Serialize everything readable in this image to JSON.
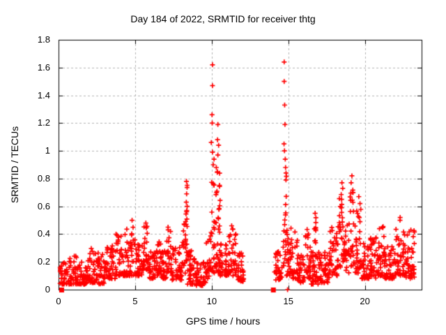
{
  "figure": {
    "title": "Day 184 of 2022, SRMTID for receiver thtg",
    "xlabel": "GPS time / hours",
    "ylabel": "SRMTID / TECUs"
  },
  "chart_data": {
    "type": "scatter",
    "title": "Day 184 of 2022, SRMTID for receiver thtg",
    "xlabel": "GPS time / hours",
    "ylabel": "SRMTID / TECUs",
    "marker": "plus",
    "marker_color": "#ff0000",
    "grid": true,
    "grid_color": "#b2b2b2",
    "border_color": "#000000",
    "background": "#ffffff",
    "xlim": [
      0,
      23.7
    ],
    "ylim": [
      0,
      1.8
    ],
    "xticks": [
      0,
      5,
      10,
      15,
      20
    ],
    "yticks": [
      0,
      0.2,
      0.4,
      0.6,
      0.8,
      1.0,
      1.2,
      1.4,
      1.6,
      1.8
    ],
    "xtick_labels": [
      "0",
      "5",
      "10",
      "15",
      "20"
    ],
    "ytick_labels": [
      "0",
      "0.2",
      "0.4",
      "0.6",
      "0.8",
      "1",
      "1.2",
      "1.4",
      "1.6",
      "1.8"
    ],
    "x_data_ranges": [
      [
        0.1,
        12.1
      ],
      [
        14.1,
        23.3
      ]
    ],
    "data_gap_hours": [
      12.1,
      14.1
    ],
    "seed": 1184,
    "zero_square_markers": [
      [
        0.18,
        0
      ],
      [
        14.0,
        0
      ]
    ],
    "zero_plus_markers": [
      [
        14.95,
        0
      ]
    ],
    "extreme_points": [
      [
        4.8,
        0.5
      ],
      [
        5.7,
        0.48
      ],
      [
        7.15,
        0.45
      ],
      [
        8.35,
        0.78
      ],
      [
        8.36,
        0.69
      ],
      [
        8.34,
        0.63
      ],
      [
        8.37,
        0.57
      ],
      [
        9.97,
        1.06
      ],
      [
        10.02,
        1.26
      ],
      [
        10.03,
        1.2
      ],
      [
        10.05,
        1.62
      ],
      [
        10.05,
        1.47
      ],
      [
        10.05,
        0.99
      ],
      [
        10.1,
        0.9
      ],
      [
        10.15,
        0.94
      ],
      [
        10.3,
        0.88
      ],
      [
        10.38,
        1.08
      ],
      [
        10.4,
        1.19
      ],
      [
        10.4,
        0.97
      ],
      [
        10.45,
        1.04
      ],
      [
        11.3,
        0.46
      ],
      [
        14.73,
        1.64
      ],
      [
        14.73,
        1.5
      ],
      [
        14.76,
        1.33
      ],
      [
        14.78,
        1.19
      ],
      [
        14.72,
        1.05
      ],
      [
        14.75,
        1.0
      ],
      [
        14.8,
        0.94
      ],
      [
        14.82,
        0.88
      ],
      [
        14.85,
        0.84
      ],
      [
        16.75,
        0.55
      ],
      [
        18.5,
        0.77
      ],
      [
        18.55,
        0.73
      ],
      [
        18.48,
        0.65
      ],
      [
        19.15,
        0.82
      ],
      [
        19.1,
        0.77
      ],
      [
        19.6,
        0.67
      ],
      [
        19.68,
        0.62
      ],
      [
        22.3,
        0.52
      ],
      [
        23.0,
        0.43
      ]
    ],
    "clusters": [
      [
        0.1,
        0.7,
        40,
        0.04,
        0.2,
        2.0
      ],
      [
        0.7,
        1.3,
        42,
        0.04,
        0.25,
        2.0
      ],
      [
        1.3,
        1.9,
        40,
        0.04,
        0.22,
        2.0
      ],
      [
        1.9,
        2.4,
        35,
        0.05,
        0.3,
        2.0
      ],
      [
        2.4,
        3.0,
        40,
        0.04,
        0.28,
        2.0
      ],
      [
        3.0,
        3.7,
        46,
        0.08,
        0.33,
        2.0
      ],
      [
        3.7,
        4.4,
        46,
        0.1,
        0.42,
        1.8
      ],
      [
        4.4,
        5.0,
        40,
        0.1,
        0.48,
        2.0
      ],
      [
        5.0,
        5.5,
        34,
        0.1,
        0.33,
        2.0
      ],
      [
        5.5,
        5.9,
        30,
        0.14,
        0.47,
        1.4
      ],
      [
        5.9,
        6.3,
        30,
        0.08,
        0.28,
        2.0
      ],
      [
        6.3,
        6.7,
        30,
        0.1,
        0.36,
        1.8
      ],
      [
        6.7,
        7.05,
        25,
        0.08,
        0.3,
        2.0
      ],
      [
        7.05,
        7.4,
        28,
        0.12,
        0.44,
        1.5
      ],
      [
        7.4,
        8.1,
        46,
        0.07,
        0.33,
        2.0
      ],
      [
        8.1,
        8.32,
        16,
        0.1,
        0.5,
        1.5
      ],
      [
        8.32,
        8.42,
        14,
        0.18,
        0.76,
        1.1
      ],
      [
        8.42,
        9.0,
        45,
        0.04,
        0.28,
        2.2
      ],
      [
        9.0,
        9.6,
        40,
        0.03,
        0.2,
        2.0
      ],
      [
        9.6,
        9.95,
        26,
        0.08,
        0.4,
        1.6
      ],
      [
        9.95,
        10.55,
        60,
        0.12,
        0.85,
        1.7
      ],
      [
        10.55,
        11.0,
        35,
        0.1,
        0.35,
        2.0
      ],
      [
        11.0,
        11.6,
        40,
        0.1,
        0.45,
        1.8
      ],
      [
        11.6,
        12.1,
        36,
        0.06,
        0.28,
        2.0
      ],
      [
        14.1,
        14.6,
        36,
        0.07,
        0.3,
        2.0
      ],
      [
        14.66,
        14.88,
        20,
        0.15,
        0.85,
        1.2
      ],
      [
        14.88,
        15.1,
        18,
        0.1,
        0.45,
        1.6
      ],
      [
        15.1,
        15.6,
        36,
        0.08,
        0.5,
        1.8
      ],
      [
        15.6,
        16.05,
        30,
        0.05,
        0.25,
        2.0
      ],
      [
        16.05,
        16.5,
        32,
        0.08,
        0.44,
        1.8
      ],
      [
        16.5,
        17.1,
        40,
        0.04,
        0.28,
        2.0
      ],
      [
        16.7,
        16.8,
        10,
        0.2,
        0.54,
        1.2
      ],
      [
        17.1,
        17.7,
        40,
        0.05,
        0.28,
        2.0
      ],
      [
        17.7,
        18.25,
        36,
        0.1,
        0.45,
        1.8
      ],
      [
        18.25,
        18.65,
        30,
        0.15,
        0.7,
        1.4
      ],
      [
        18.65,
        19.0,
        25,
        0.12,
        0.5,
        1.6
      ],
      [
        19.0,
        19.25,
        20,
        0.15,
        0.75,
        1.3
      ],
      [
        19.25,
        19.75,
        36,
        0.12,
        0.6,
        1.7
      ],
      [
        19.75,
        20.3,
        42,
        0.08,
        0.35,
        2.0
      ],
      [
        20.3,
        20.9,
        42,
        0.08,
        0.38,
        2.0
      ],
      [
        20.9,
        21.3,
        30,
        0.1,
        0.46,
        1.8
      ],
      [
        21.3,
        22.0,
        46,
        0.08,
        0.35,
        2.0
      ],
      [
        22.0,
        22.6,
        40,
        0.1,
        0.5,
        1.8
      ],
      [
        22.6,
        23.25,
        46,
        0.08,
        0.45,
        1.9
      ]
    ]
  }
}
